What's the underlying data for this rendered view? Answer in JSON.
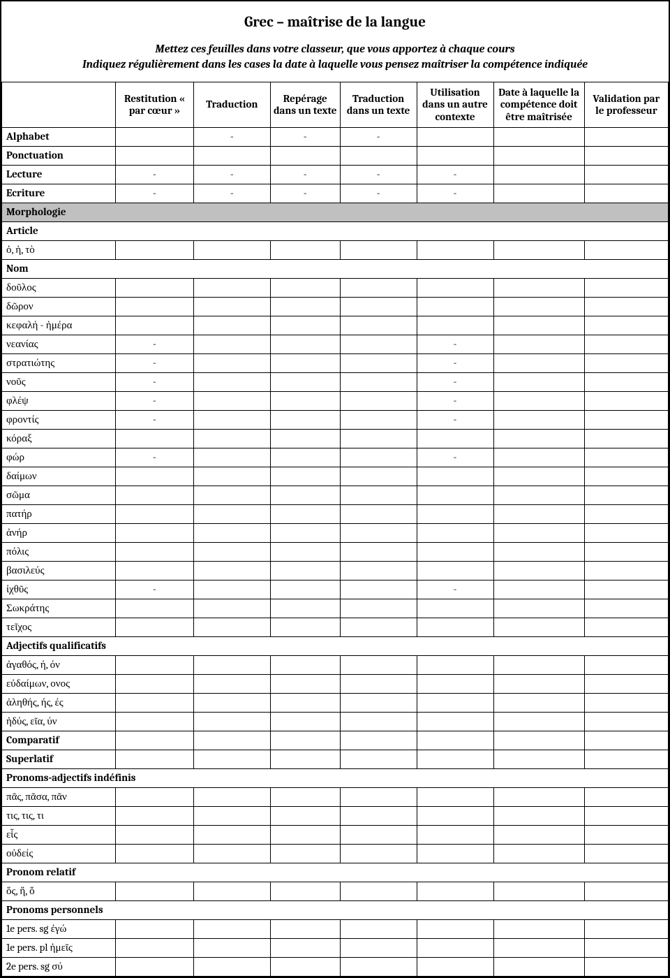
{
  "title": "Grec – maîtrise de la langue",
  "subtitle_line1": "Mettez ces feuilles dans votre classeur, que vous apportez à chaque cours",
  "subtitle_line2": "Indiquez régulièrement dans les cases la date à laquelle vous pensez maîtriser la compétence indiquée",
  "columns": [
    "",
    "Restitution « par cœur »",
    "Traduction",
    "Repérage dans un texte",
    "Traduction dans un texte",
    "Utilisation dans un autre contexte",
    "Date à laquelle la compétence doit être maîtrisée",
    "Validation par le professeur"
  ],
  "rows": [
    {
      "type": "regular",
      "bold": true,
      "label": "Alphabet",
      "cells": [
        "",
        "-",
        "-",
        "-",
        "",
        "",
        ""
      ]
    },
    {
      "type": "regular",
      "bold": true,
      "label": "Ponctuation",
      "cells": [
        "",
        "",
        "",
        "",
        "",
        "",
        ""
      ]
    },
    {
      "type": "regular",
      "bold": true,
      "label": "Lecture",
      "cells": [
        "-",
        "-",
        "-",
        "-",
        "-",
        "",
        ""
      ]
    },
    {
      "type": "regular",
      "bold": true,
      "label": "Ecriture",
      "cells": [
        "-",
        "-",
        "-",
        "-",
        "-",
        "",
        ""
      ]
    },
    {
      "type": "section",
      "label": "Morphologie"
    },
    {
      "type": "subheader",
      "label": "Article"
    },
    {
      "type": "regular",
      "bold": false,
      "label": "ὁ, ἡ, τὸ",
      "cells": [
        "",
        "",
        "",
        "",
        "",
        "",
        ""
      ]
    },
    {
      "type": "subheader",
      "label": "Nom"
    },
    {
      "type": "regular",
      "bold": false,
      "label": "δοῦλος",
      "cells": [
        "",
        "",
        "",
        "",
        "",
        "",
        ""
      ]
    },
    {
      "type": "regular",
      "bold": false,
      "label": "δῶρον",
      "cells": [
        "",
        "",
        "",
        "",
        "",
        "",
        ""
      ]
    },
    {
      "type": "regular",
      "bold": false,
      "label": "κεφαλή - ἡμέρα",
      "cells": [
        "",
        "",
        "",
        "",
        "",
        "",
        ""
      ]
    },
    {
      "type": "regular",
      "bold": false,
      "label": "νεανίας",
      "cells": [
        "-",
        "",
        "",
        "",
        "-",
        "",
        ""
      ]
    },
    {
      "type": "regular",
      "bold": false,
      "label": "στρατιώτης",
      "cells": [
        "-",
        "",
        "",
        "",
        "-",
        "",
        ""
      ]
    },
    {
      "type": "regular",
      "bold": false,
      "label": "νοῦς",
      "cells": [
        "-",
        "",
        "",
        "",
        "-",
        "",
        ""
      ]
    },
    {
      "type": "regular",
      "bold": false,
      "label": "φλέψ",
      "cells": [
        "-",
        "",
        "",
        "",
        "-",
        "",
        ""
      ]
    },
    {
      "type": "regular",
      "bold": false,
      "label": "φροντίς",
      "cells": [
        "-",
        "",
        "",
        "",
        "-",
        "",
        ""
      ]
    },
    {
      "type": "regular",
      "bold": false,
      "label": "κόραξ",
      "cells": [
        "",
        "",
        "",
        "",
        "",
        "",
        ""
      ]
    },
    {
      "type": "regular",
      "bold": false,
      "label": "φώρ",
      "cells": [
        "-",
        "",
        "",
        "",
        "-",
        "",
        ""
      ]
    },
    {
      "type": "regular",
      "bold": false,
      "label": "δαίμων",
      "cells": [
        "",
        "",
        "",
        "",
        "",
        "",
        ""
      ]
    },
    {
      "type": "regular",
      "bold": false,
      "label": "σῶμα",
      "cells": [
        "",
        "",
        "",
        "",
        "",
        "",
        ""
      ]
    },
    {
      "type": "regular",
      "bold": false,
      "label": "πατήρ",
      "cells": [
        "",
        "",
        "",
        "",
        "",
        "",
        ""
      ]
    },
    {
      "type": "regular",
      "bold": false,
      "label": "ἀνήρ",
      "cells": [
        "",
        "",
        "",
        "",
        "",
        "",
        ""
      ]
    },
    {
      "type": "regular",
      "bold": false,
      "label": "πόλις",
      "cells": [
        "",
        "",
        "",
        "",
        "",
        "",
        ""
      ]
    },
    {
      "type": "regular",
      "bold": false,
      "label": "βασιλεύς",
      "cells": [
        "",
        "",
        "",
        "",
        "",
        "",
        ""
      ]
    },
    {
      "type": "regular",
      "bold": false,
      "label": "ἰχθῦς",
      "cells": [
        "-",
        "",
        "",
        "",
        "-",
        "",
        ""
      ]
    },
    {
      "type": "regular",
      "bold": false,
      "label": "Σωκράτης",
      "cells": [
        "",
        "",
        "",
        "",
        "",
        "",
        ""
      ]
    },
    {
      "type": "regular",
      "bold": false,
      "label": "τεῖχος",
      "cells": [
        "",
        "",
        "",
        "",
        "",
        "",
        ""
      ]
    },
    {
      "type": "subheader",
      "label": "Adjectifs qualificatifs"
    },
    {
      "type": "regular",
      "bold": false,
      "label": "ἀγαθός, ή, όν",
      "cells": [
        "",
        "",
        "",
        "",
        "",
        "",
        ""
      ]
    },
    {
      "type": "regular",
      "bold": false,
      "label": "εὐδαίμων, ονος",
      "cells": [
        "",
        "",
        "",
        "",
        "",
        "",
        ""
      ]
    },
    {
      "type": "regular",
      "bold": false,
      "label": "ἀληθής, ής, ές",
      "cells": [
        "",
        "",
        "",
        "",
        "",
        "",
        ""
      ]
    },
    {
      "type": "regular",
      "bold": false,
      "label": "ἡδύς, εῖα, ύν",
      "cells": [
        "",
        "",
        "",
        "",
        "",
        "",
        ""
      ]
    },
    {
      "type": "regular",
      "bold": true,
      "label": "Comparatif",
      "cells": [
        "",
        "",
        "",
        "",
        "",
        "",
        ""
      ]
    },
    {
      "type": "regular",
      "bold": true,
      "label": "Superlatif",
      "cells": [
        "",
        "",
        "",
        "",
        "",
        "",
        ""
      ]
    },
    {
      "type": "subheader",
      "label": "Pronoms-adjectifs indéfinis"
    },
    {
      "type": "regular",
      "bold": false,
      "label": "πᾶς, πᾶσα, πᾶν",
      "cells": [
        "",
        "",
        "",
        "",
        "",
        "",
        ""
      ]
    },
    {
      "type": "regular",
      "bold": false,
      "label": "τις, τις, τι",
      "cells": [
        "",
        "",
        "",
        "",
        "",
        "",
        ""
      ]
    },
    {
      "type": "regular",
      "bold": false,
      "label": "εἷς",
      "cells": [
        "",
        "",
        "",
        "",
        "",
        "",
        ""
      ]
    },
    {
      "type": "regular",
      "bold": false,
      "label": "οὐδείς",
      "cells": [
        "",
        "",
        "",
        "",
        "",
        "",
        ""
      ]
    },
    {
      "type": "subheader",
      "label": "Pronom relatif"
    },
    {
      "type": "regular",
      "bold": false,
      "label": "ὅς, ἥ, ὅ",
      "cells": [
        "",
        "",
        "",
        "",
        "",
        "",
        ""
      ]
    },
    {
      "type": "subheader",
      "label": "Pronoms personnels"
    },
    {
      "type": "regular",
      "bold": false,
      "label": "1e pers. sg ἐγώ",
      "cells": [
        "",
        "",
        "",
        "",
        "",
        "",
        ""
      ]
    },
    {
      "type": "regular",
      "bold": false,
      "label": "1e pers. pl ἡμεῖς",
      "cells": [
        "",
        "",
        "",
        "",
        "",
        "",
        ""
      ]
    },
    {
      "type": "regular",
      "bold": false,
      "label": "2e pers. sg σύ",
      "cells": [
        "",
        "",
        "",
        "",
        "",
        "",
        ""
      ]
    }
  ]
}
